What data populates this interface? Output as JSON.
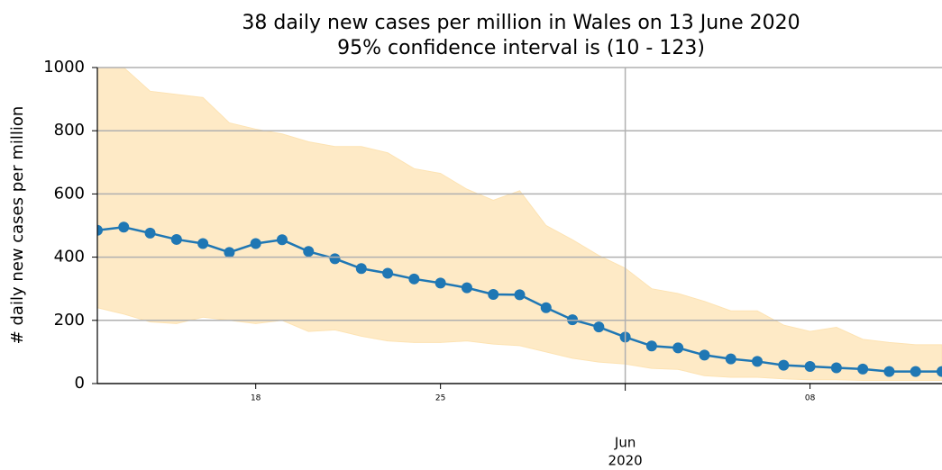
{
  "chart_data": {
    "type": "line",
    "title": [
      "38 daily new cases per million in Wales on 13 June 2020",
      "95% confidence interval is (10 - 123)"
    ],
    "ylabel": "# daily new cases per million",
    "x": [
      "2020-05-12",
      "2020-05-13",
      "2020-05-14",
      "2020-05-15",
      "2020-05-16",
      "2020-05-17",
      "2020-05-18",
      "2020-05-19",
      "2020-05-20",
      "2020-05-21",
      "2020-05-22",
      "2020-05-23",
      "2020-05-24",
      "2020-05-25",
      "2020-05-26",
      "2020-05-27",
      "2020-05-28",
      "2020-05-29",
      "2020-05-30",
      "2020-05-31",
      "2020-06-01",
      "2020-06-02",
      "2020-06-03",
      "2020-06-04",
      "2020-06-05",
      "2020-06-06",
      "2020-06-07",
      "2020-06-08",
      "2020-06-09",
      "2020-06-10",
      "2020-06-11",
      "2020-06-12",
      "2020-06-13"
    ],
    "values": [
      485,
      495,
      476,
      456,
      443,
      415,
      443,
      455,
      418,
      395,
      364,
      349,
      331,
      318,
      303,
      282,
      281,
      240,
      202,
      179,
      147,
      119,
      113,
      90,
      78,
      70,
      58,
      54,
      50,
      46,
      38,
      38,
      38
    ],
    "ci_upper": [
      1060,
      1000,
      925,
      915,
      905,
      825,
      805,
      790,
      765,
      750,
      750,
      730,
      680,
      665,
      615,
      580,
      610,
      500,
      455,
      405,
      365,
      300,
      285,
      260,
      230,
      230,
      185,
      165,
      178,
      140,
      130,
      123,
      123
    ],
    "ci_lower": [
      240,
      220,
      195,
      190,
      210,
      200,
      190,
      200,
      165,
      170,
      150,
      135,
      130,
      130,
      135,
      125,
      120,
      100,
      80,
      68,
      62,
      48,
      45,
      25,
      20,
      20,
      15,
      12,
      12,
      10,
      10,
      10,
      10
    ],
    "color": "#1f77b4",
    "ci_color": "#fde3b3",
    "xlim": [
      "2020-05-12",
      "2020-06-13"
    ],
    "xticks": [
      {
        "value": "2020-05-18",
        "label": "18"
      },
      {
        "value": "2020-05-25",
        "label": "25"
      },
      {
        "value": "2020-06-01",
        "label": [
          "Jun",
          "2020"
        ]
      },
      {
        "value": "2020-06-08",
        "label": "08"
      }
    ],
    "ylim": [
      0,
      1000
    ],
    "yticks": [
      0,
      200,
      400,
      600,
      800,
      1000
    ],
    "grid": true
  }
}
